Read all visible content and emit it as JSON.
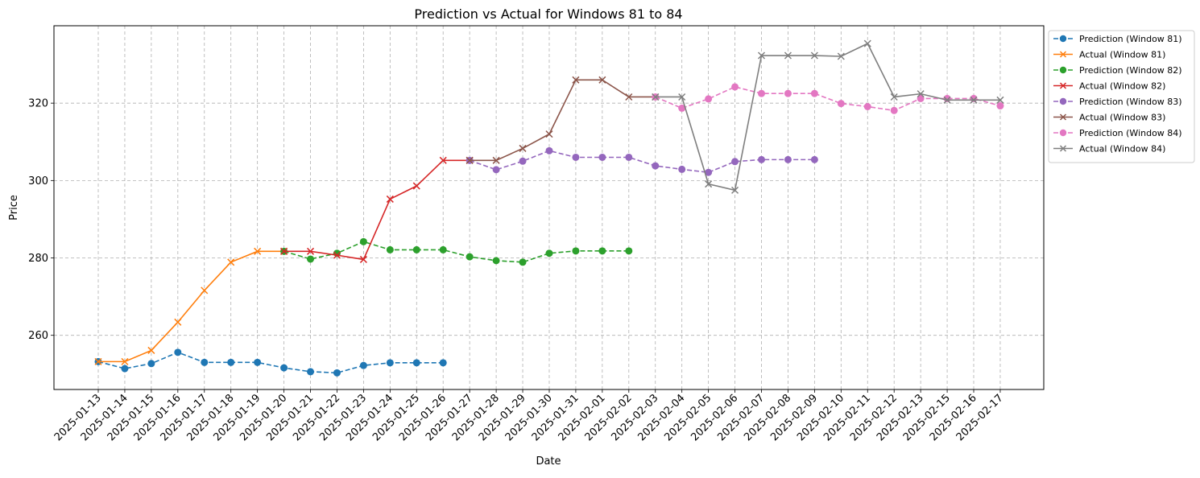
{
  "chart_data": {
    "type": "line",
    "title": "Prediction vs Actual for Windows 81 to 84",
    "xlabel": "Date",
    "ylabel": "Price",
    "ylim": [
      246,
      340
    ],
    "yticks": [
      260,
      280,
      300,
      320
    ],
    "grid": true,
    "legend_position": "outside-top-right",
    "categories": [
      "2025-01-13",
      "2025-01-14",
      "2025-01-15",
      "2025-01-16",
      "2025-01-17",
      "2025-01-18",
      "2025-01-19",
      "2025-01-20",
      "2025-01-21",
      "2025-01-22",
      "2025-01-23",
      "2025-01-24",
      "2025-01-25",
      "2025-01-26",
      "2025-01-27",
      "2025-01-28",
      "2025-01-29",
      "2025-01-30",
      "2025-01-31",
      "2025-02-01",
      "2025-02-02",
      "2025-02-03",
      "2025-02-04",
      "2025-02-05",
      "2025-02-06",
      "2025-02-07",
      "2025-02-08",
      "2025-02-09",
      "2025-02-10",
      "2025-02-11",
      "2025-02-12",
      "2025-02-13",
      "2025-02-15",
      "2025-02-16",
      "2025-02-17"
    ],
    "series": [
      {
        "name": "Prediction (Window 81)",
        "color": "#1f77b4",
        "marker": "circle",
        "dashed": true,
        "x": [
          "2025-01-13",
          "2025-01-14",
          "2025-01-15",
          "2025-01-16",
          "2025-01-17",
          "2025-01-18",
          "2025-01-19",
          "2025-01-20",
          "2025-01-21",
          "2025-01-22",
          "2025-01-23",
          "2025-01-24",
          "2025-01-25",
          "2025-01-26"
        ],
        "y": [
          253.2,
          251.4,
          252.7,
          255.6,
          253.0,
          253.0,
          253.0,
          251.6,
          250.6,
          250.3,
          252.2,
          252.9,
          252.9,
          252.9
        ]
      },
      {
        "name": "Actual (Window 81)",
        "color": "#ff7f0e",
        "marker": "x",
        "dashed": false,
        "x": [
          "2025-01-13",
          "2025-01-14",
          "2025-01-15",
          "2025-01-16",
          "2025-01-17",
          "2025-01-18",
          "2025-01-19",
          "2025-01-20"
        ],
        "y": [
          253.2,
          253.2,
          256.1,
          263.4,
          271.6,
          278.9,
          281.7,
          281.7
        ]
      },
      {
        "name": "Prediction (Window 82)",
        "color": "#2ca02c",
        "marker": "circle",
        "dashed": true,
        "x": [
          "2025-01-20",
          "2025-01-21",
          "2025-01-22",
          "2025-01-23",
          "2025-01-24",
          "2025-01-25",
          "2025-01-26",
          "2025-01-27",
          "2025-01-28",
          "2025-01-29",
          "2025-01-30",
          "2025-01-31",
          "2025-02-01",
          "2025-02-02"
        ],
        "y": [
          281.7,
          279.7,
          281.2,
          284.2,
          282.1,
          282.1,
          282.1,
          280.3,
          279.3,
          278.9,
          281.2,
          281.8,
          281.8,
          281.8
        ]
      },
      {
        "name": "Actual (Window 82)",
        "color": "#d62728",
        "marker": "x",
        "dashed": false,
        "x": [
          "2025-01-20",
          "2025-01-21",
          "2025-01-22",
          "2025-01-23",
          "2025-01-24",
          "2025-01-25",
          "2025-01-26",
          "2025-01-27"
        ],
        "y": [
          281.7,
          281.7,
          280.7,
          279.6,
          295.2,
          298.6,
          305.2,
          305.2
        ]
      },
      {
        "name": "Prediction (Window 83)",
        "color": "#9467bd",
        "marker": "circle",
        "dashed": true,
        "x": [
          "2025-01-27",
          "2025-01-28",
          "2025-01-29",
          "2025-01-30",
          "2025-01-31",
          "2025-02-01",
          "2025-02-02",
          "2025-02-03",
          "2025-02-04",
          "2025-02-05",
          "2025-02-06",
          "2025-02-07",
          "2025-02-08",
          "2025-02-09"
        ],
        "y": [
          305.2,
          302.8,
          305.0,
          307.7,
          306.0,
          306.0,
          306.0,
          303.8,
          302.9,
          302.1,
          304.9,
          305.4,
          305.4,
          305.4
        ]
      },
      {
        "name": "Actual (Window 83)",
        "color": "#8c564b",
        "marker": "x",
        "dashed": false,
        "x": [
          "2025-01-27",
          "2025-01-28",
          "2025-01-29",
          "2025-01-30",
          "2025-01-31",
          "2025-02-01",
          "2025-02-02",
          "2025-02-03"
        ],
        "y": [
          305.2,
          305.2,
          308.3,
          312.0,
          326.0,
          326.0,
          321.6,
          321.6
        ]
      },
      {
        "name": "Prediction (Window 84)",
        "color": "#e377c2",
        "marker": "circle",
        "dashed": true,
        "x": [
          "2025-02-03",
          "2025-02-04",
          "2025-02-05",
          "2025-02-06",
          "2025-02-07",
          "2025-02-08",
          "2025-02-09",
          "2025-02-10",
          "2025-02-11",
          "2025-02-12",
          "2025-02-13",
          "2025-02-15",
          "2025-02-16",
          "2025-02-17"
        ],
        "y": [
          321.6,
          318.7,
          321.1,
          324.2,
          322.5,
          322.5,
          322.5,
          319.9,
          319.1,
          318.1,
          321.2,
          321.2,
          321.2,
          319.3
        ]
      },
      {
        "name": "Actual (Window 84)",
        "color": "#7f7f7f",
        "marker": "x",
        "dashed": false,
        "x": [
          "2025-02-03",
          "2025-02-04",
          "2025-02-05",
          "2025-02-06",
          "2025-02-07",
          "2025-02-08",
          "2025-02-09",
          "2025-02-10",
          "2025-02-11",
          "2025-02-12",
          "2025-02-13",
          "2025-02-15",
          "2025-02-16",
          "2025-02-17"
        ],
        "y": [
          321.6,
          321.6,
          299.1,
          297.5,
          332.3,
          332.3,
          332.3,
          332.1,
          335.4,
          321.6,
          322.4,
          320.8,
          320.8,
          320.8
        ]
      }
    ]
  }
}
